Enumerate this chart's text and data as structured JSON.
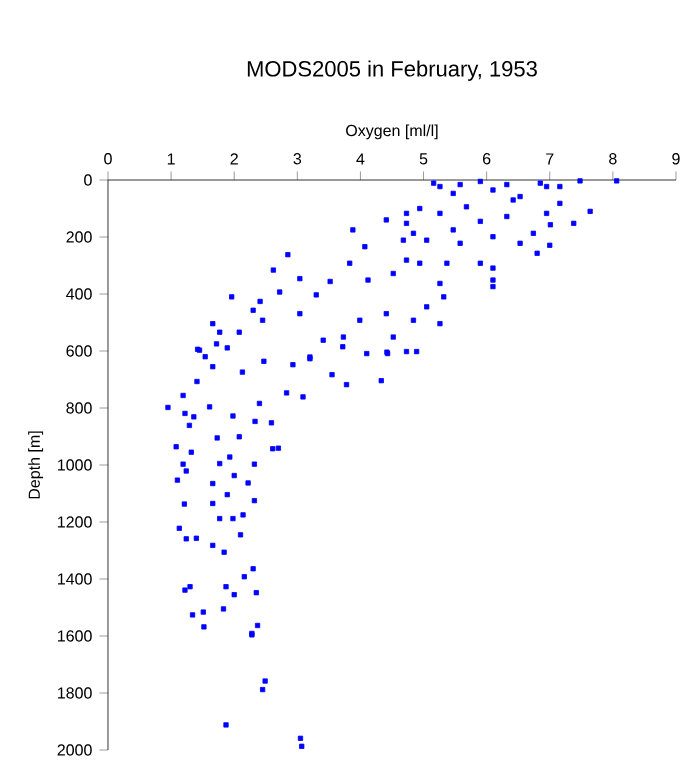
{
  "chart_data": {
    "type": "scatter",
    "title": "MODS2005 in February, 1953",
    "xlabel": "Oxygen [ml/l]",
    "ylabel": "Depth [m]",
    "xlim": [
      0,
      9
    ],
    "xticks": [
      0,
      1,
      2,
      3,
      4,
      5,
      6,
      7,
      8,
      9
    ],
    "ylim": [
      2000,
      0
    ],
    "yticks": [
      0,
      200,
      400,
      600,
      800,
      1000,
      1200,
      1400,
      1600,
      1800,
      2000
    ],
    "grid": false,
    "marker": "square",
    "series": [
      {
        "color": "#0000ff",
        "x": [
          1.42,
          1.54,
          1.89,
          1.72,
          1.66,
          1.41,
          1.19,
          0.95,
          1.22,
          1.36,
          1.61,
          1.98,
          2.4,
          2.59,
          2.47,
          2.93,
          3.2,
          2.83,
          3.09,
          3.55,
          3.78,
          4.33,
          3.72,
          4.42,
          4.89,
          2.13,
          2.33,
          2.08,
          1.73,
          1.29,
          1.08,
          1.32,
          1.19,
          1.1,
          1.24,
          1.77,
          2.0,
          2.22,
          1.93,
          2.61,
          2.7,
          2.32,
          1.66,
          1.89,
          1.66,
          1.21,
          2.32,
          1.77,
          1.98,
          1.13,
          1.24,
          1.4,
          1.66,
          1.84,
          2.14,
          2.1,
          2.3,
          2.16,
          1.22,
          1.3,
          1.87,
          2.0,
          2.35,
          1.34,
          1.51,
          1.83,
          1.52,
          2.28,
          2.37,
          2.28,
          2.49,
          2.45,
          1.87,
          3.05,
          3.07,
          8.06,
          7.48,
          5.16,
          5.9,
          6.85,
          5.47,
          6.1,
          6.53,
          6.95,
          7.16,
          7.64,
          7.38,
          7.01,
          6.8,
          7.0,
          6.53,
          6.1,
          5.58,
          5.26,
          4.94,
          4.73,
          4.41,
          4.73,
          3.88,
          4.07,
          4.84,
          5.05,
          5.37,
          4.73,
          4.94,
          5.9,
          6.1,
          6.1,
          6.1,
          5.26,
          5.05,
          5.32,
          4.52,
          4.12,
          3.83,
          3.52,
          3.3,
          3.04,
          2.85,
          2.62,
          2.72,
          2.41,
          1.96,
          1.66,
          1.77,
          2.08,
          2.45,
          3.04,
          3.41,
          3.73,
          3.99,
          4.41,
          4.84,
          5.26,
          4.52,
          4.1,
          4.43,
          4.73,
          1.45,
          3.2,
          2.3,
          4.68,
          5.9,
          5.47,
          6.32,
          5.68,
          6.95,
          6.74,
          6.42,
          7.16,
          5.26,
          5.58,
          6.32
        ],
        "values": [
          594,
          620,
          589,
          575,
          655,
          707,
          756,
          798,
          819,
          831,
          796,
          828,
          784,
          852,
          636,
          648,
          627,
          747,
          761,
          683,
          718,
          704,
          585,
          604,
          602,
          674,
          847,
          901,
          905,
          861,
          936,
          955,
          997,
          1053,
          1021,
          995,
          1037,
          1063,
          972,
          943,
          941,
          997,
          1065,
          1104,
          1135,
          1137,
          1125,
          1188,
          1188,
          1222,
          1259,
          1257,
          1282,
          1306,
          1175,
          1245,
          1364,
          1392,
          1439,
          1427,
          1427,
          1455,
          1448,
          1526,
          1516,
          1505,
          1568,
          1591,
          1563,
          1596,
          1758,
          1788,
          1912,
          1959,
          1987,
          3,
          3,
          11,
          5,
          11,
          47,
          35,
          58,
          23,
          82,
          110,
          152,
          157,
          257,
          229,
          222,
          199,
          222,
          117,
          100,
          117,
          140,
          152,
          175,
          234,
          187,
          211,
          292,
          281,
          292,
          292,
          309,
          351,
          374,
          363,
          445,
          410,
          328,
          351,
          292,
          356,
          403,
          346,
          262,
          316,
          393,
          426,
          410,
          504,
          534,
          534,
          492,
          469,
          562,
          551,
          492,
          469,
          492,
          504,
          551,
          609,
          609,
          602,
          597,
          621,
          457,
          211,
          145,
          175,
          128,
          94,
          117,
          187,
          70,
          23,
          23,
          16,
          16
        ]
      }
    ]
  }
}
